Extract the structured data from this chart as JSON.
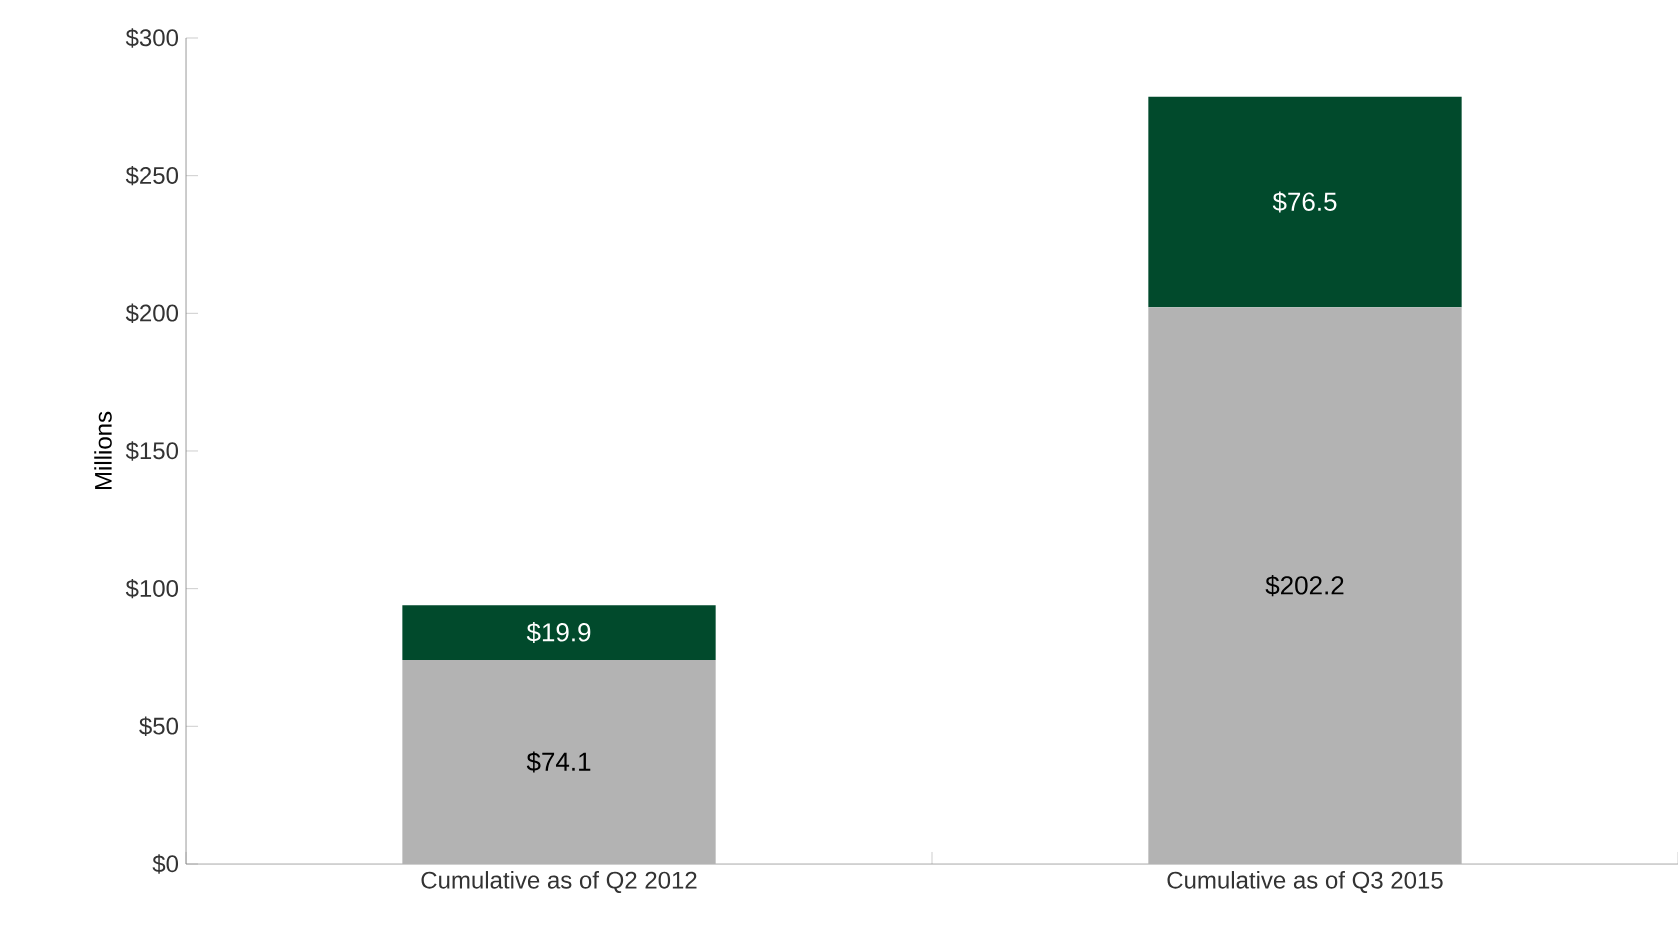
{
  "chart_data": {
    "type": "bar",
    "stacked": true,
    "ylabel": "Millions",
    "categories": [
      "Cumulative as of Q2 2012",
      "Cumulative as of Q3 2015"
    ],
    "series": [
      {
        "color": "#b3b3b3",
        "values": [
          74.1,
          202.2
        ],
        "value_labels": [
          "$74.1",
          "$202.2"
        ]
      },
      {
        "color": "#014a2c",
        "values": [
          19.9,
          76.5
        ],
        "value_labels": [
          "$19.9",
          "$76.5"
        ]
      }
    ],
    "ylim": [
      0,
      300
    ],
    "yticks": [
      {
        "value": 0,
        "label": "$0"
      },
      {
        "value": 50,
        "label": "$50"
      },
      {
        "value": 100,
        "label": "$100"
      },
      {
        "value": 150,
        "label": "$150"
      },
      {
        "value": 200,
        "label": "$200"
      },
      {
        "value": 250,
        "label": "$250"
      },
      {
        "value": 300,
        "label": "$300"
      }
    ],
    "grid": false
  }
}
